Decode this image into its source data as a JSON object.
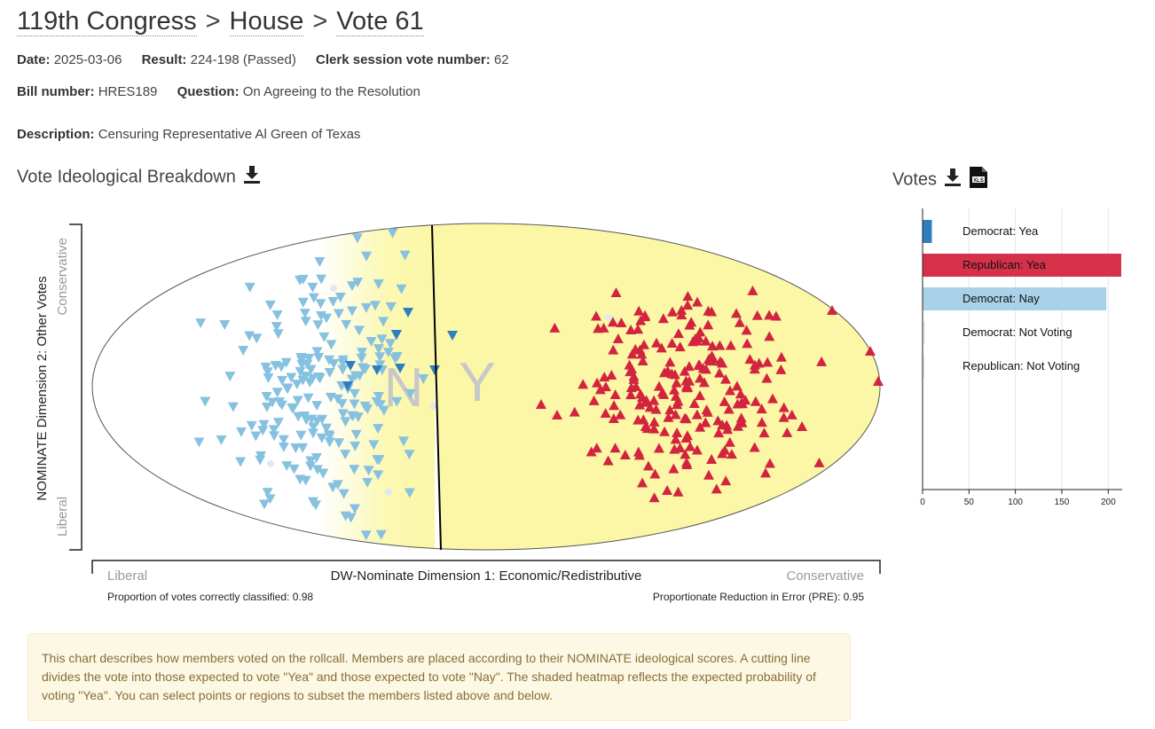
{
  "breadcrumb": {
    "congress": "119th Congress",
    "chamber": "House",
    "vote": "Vote 61",
    "separator": ">"
  },
  "meta": {
    "date_label": "Date:",
    "date_value": "2025-03-06",
    "result_label": "Result:",
    "result_value": "224-198 (Passed)",
    "clerk_label": "Clerk session vote number:",
    "clerk_value": "62",
    "bill_label": "Bill number:",
    "bill_value": "HRES189",
    "question_label": "Question:",
    "question_value": "On Agreeing to the Resolution",
    "description_label": "Description:",
    "description_value": "Censuring Representative Al Green of Texas"
  },
  "sections": {
    "breakdown_title": "Vote Ideological Breakdown",
    "votes_title": "Votes"
  },
  "icons": {
    "download": "download-icon",
    "xls": "xls-file-icon"
  },
  "colors": {
    "dem_yea": "#2d7fbf",
    "dem_nay": "#87c1e0",
    "rep_yea": "#d2243f",
    "rep_bar": "#d6314b",
    "dem_bar_nay": "#a9d1e8",
    "not_voting_dem": "#e8eff6",
    "not_voting_rep": "#fbe5e6",
    "yea_region": "#fbf7a6",
    "cut_line": "#000000"
  },
  "main_chart": {
    "y_axis_title": "NOMINATE Dimension 2: Other Votes",
    "y_top_label": "Conservative",
    "y_bottom_label": "Liberal",
    "x_axis_title": "DW-Nominate Dimension 1: Economic/Redistributive",
    "x_left_label": "Liberal",
    "x_right_label": "Conservative",
    "nay_letter": "N",
    "yea_letter": "Y",
    "pcc_text": "Proportion of votes correctly classified: 0.98",
    "pre_text": "Proportionate Reduction in Error (PRE): 0.95"
  },
  "chart_data": {
    "type": "bar",
    "orientation": "horizontal",
    "categories": [
      "Democrat: Yea",
      "Republican: Yea",
      "Democrat: Nay",
      "Democrat: Not Voting",
      "Republican: Not Voting"
    ],
    "values": [
      10,
      214,
      198,
      3,
      2
    ],
    "xlim": [
      0,
      215
    ],
    "xticks": [
      "0",
      "50",
      "100",
      "150",
      "200"
    ],
    "grid": true
  },
  "note": "This chart describes how members voted on the rollcall. Members are placed according to their NOMINATE ideological scores. A cutting line divides the vote into those expected to vote \"Yea\" and those expected to vote \"Nay\". The shaded heatmap reflects the expected probability of voting \"Yea\". You can select points or regions to subset the members listed above and below."
}
